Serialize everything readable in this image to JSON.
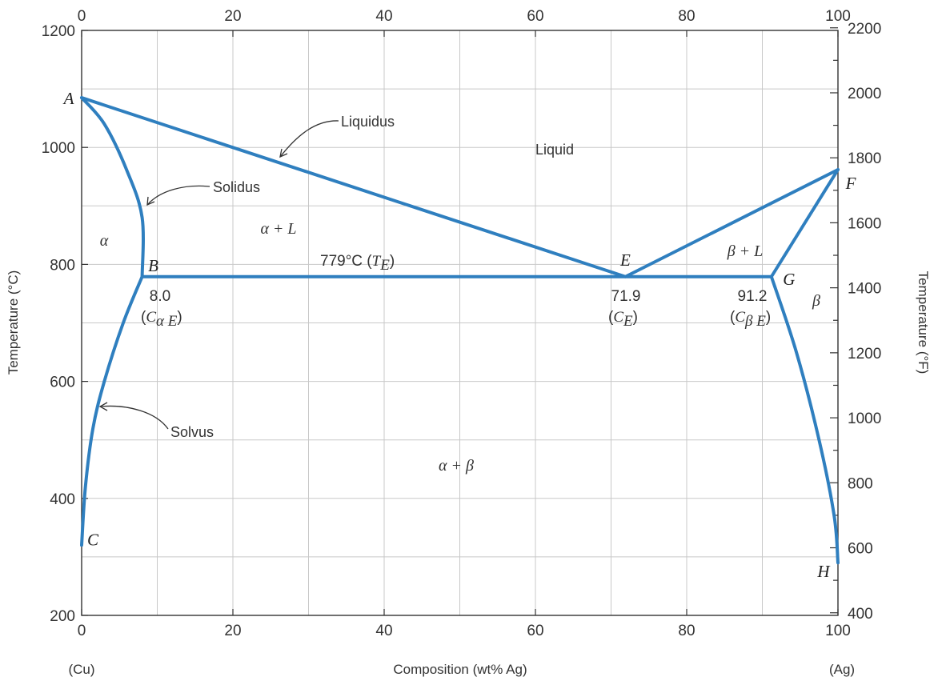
{
  "chart_data": {
    "type": "line",
    "xlabel": "Composition (wt% Ag)",
    "ylabel_left": "Temperature (°C)",
    "ylabel_right": "Temperature (°F)",
    "x_left_end_label": "(Cu)",
    "x_right_end_label": "(Ag)",
    "xlim": [
      0,
      100
    ],
    "ylim": [
      200,
      1200
    ],
    "ylim_right": [
      392,
      2192
    ],
    "x_ticks": [
      "0",
      "20",
      "40",
      "60",
      "80",
      "100"
    ],
    "y_ticks": [
      "200",
      "400",
      "600",
      "800",
      "1000",
      "1200"
    ],
    "y_right_ticks": [
      "400",
      "600",
      "800",
      "1000",
      "1200",
      "1400",
      "1600",
      "1800",
      "2000",
      "2200"
    ],
    "grid": true,
    "series": [
      {
        "name": "Liquidus",
        "x": [
          0,
          71.9,
          100
        ],
        "y": [
          1085,
          779,
          962
        ]
      },
      {
        "name": "Solidus",
        "x": [
          0,
          3.0,
          6.0,
          8.0,
          8.0
        ],
        "y": [
          1085,
          1040,
          960,
          880,
          779
        ]
      },
      {
        "name": "Solvus",
        "x": [
          0,
          0.5,
          1.5,
          3.0,
          5.5,
          8.0
        ],
        "y": [
          320,
          420,
          520,
          600,
          700,
          779
        ]
      },
      {
        "name": "Eutectic isotherm",
        "x": [
          8.0,
          91.2
        ],
        "y": [
          779,
          779
        ]
      },
      {
        "name": "β solidus",
        "x": [
          91.2,
          100
        ],
        "y": [
          779,
          962
        ]
      },
      {
        "name": "β solvus",
        "x": [
          91.2,
          94.5,
          97.5,
          99.5,
          100
        ],
        "y": [
          779,
          650,
          500,
          370,
          290
        ]
      }
    ],
    "points": [
      {
        "label": "A",
        "x": 0,
        "y": 1085
      },
      {
        "label": "B",
        "x": 8.0,
        "y": 779
      },
      {
        "label": "C",
        "x": 0,
        "y": 320
      },
      {
        "label": "E",
        "x": 71.9,
        "y": 779
      },
      {
        "label": "F",
        "x": 100,
        "y": 962
      },
      {
        "label": "G",
        "x": 91.2,
        "y": 779
      },
      {
        "label": "H",
        "x": 100,
        "y": 290
      }
    ],
    "annotations": {
      "liquidus": "Liquidus",
      "solidus": "Solidus",
      "solvus": "Solvus",
      "liquid": "Liquid",
      "alpha_plus_liquid": "α + L",
      "beta_plus_liquid": "β + L",
      "alpha": "α",
      "beta": "β",
      "alpha_plus_beta": "α + β",
      "eutectic_temp": "779°C",
      "eutectic_temp_symbol": "T",
      "eutectic_temp_sub": "E",
      "c_alpha_value": "8.0",
      "c_alpha_label": "C",
      "c_alpha_sub": "α E",
      "c_e_value": "71.9",
      "c_e_label": "C",
      "c_e_sub": "E",
      "c_beta_value": "91.2",
      "c_beta_label": "C",
      "c_beta_sub": "β E"
    }
  }
}
